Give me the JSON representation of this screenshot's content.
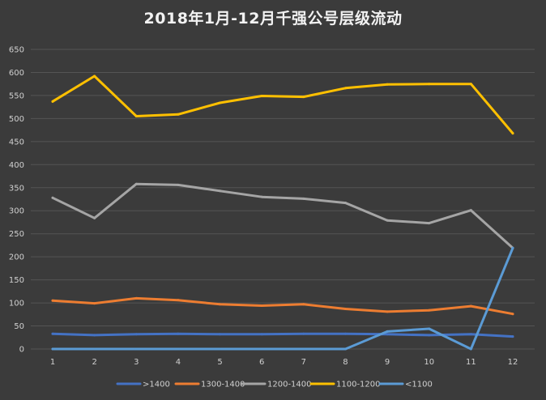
{
  "chart_data": {
    "type": "line",
    "title": "2018年1月-12月千强公号层级流动",
    "xlabel": "",
    "ylabel": "",
    "x": [
      "1",
      "2",
      "3",
      "4",
      "5",
      "6",
      "7",
      "8",
      "9",
      "10",
      "11",
      "12"
    ],
    "ylim": [
      0,
      650
    ],
    "yticks": [
      0,
      50,
      100,
      150,
      200,
      250,
      300,
      350,
      400,
      450,
      500,
      550,
      600,
      650
    ],
    "grid": "horizontal",
    "legend": "bottom",
    "series": [
      {
        "name": ">1400",
        "color": "#4472c4",
        "values": [
          33,
          30,
          32,
          33,
          32,
          32,
          33,
          33,
          32,
          30,
          32,
          27
        ]
      },
      {
        "name": "1300-1400",
        "color": "#ed7d31",
        "values": [
          105,
          99,
          110,
          106,
          97,
          94,
          97,
          87,
          81,
          84,
          93,
          76
        ]
      },
      {
        "name": "1200-1400",
        "color": "#a5a5a5",
        "values": [
          328,
          284,
          358,
          356,
          343,
          330,
          326,
          317,
          279,
          273,
          301,
          219
        ]
      },
      {
        "name": "1100-1200",
        "color": "#ffc000",
        "values": [
          537,
          592,
          505,
          509,
          534,
          549,
          547,
          566,
          574,
          575,
          575,
          468
        ]
      },
      {
        "name": "<1100",
        "color": "#5b9bd5",
        "values": [
          0,
          0,
          0,
          0,
          0,
          0,
          0,
          0,
          38,
          44,
          0,
          219
        ]
      }
    ]
  }
}
